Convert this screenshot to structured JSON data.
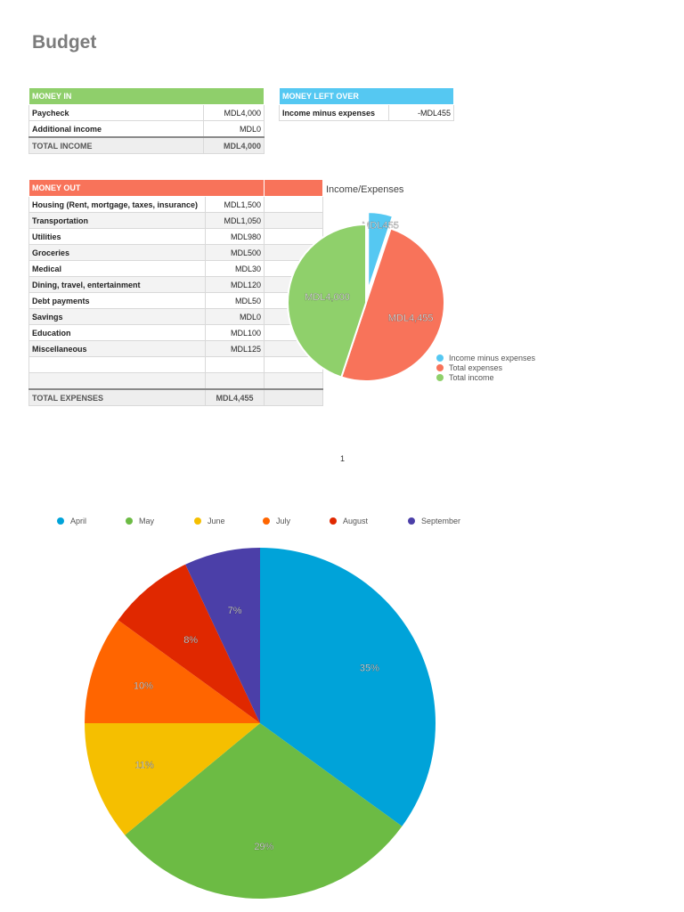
{
  "document": {
    "title": "Budget",
    "page_number": "1"
  },
  "money_in": {
    "header": "MONEY IN",
    "rows": [
      {
        "label": "Paycheck",
        "value": "MDL4,000"
      },
      {
        "label": "Additional income",
        "value": "MDL0"
      }
    ],
    "total_label": "TOTAL INCOME",
    "total_value": "MDL4,000"
  },
  "money_left": {
    "header": "MONEY LEFT OVER",
    "label": "Income minus expenses",
    "value": "-MDL455"
  },
  "money_out": {
    "header": "MONEY OUT",
    "rows": [
      {
        "label": "Housing (Rent, mortgage, taxes, insurance)",
        "value": "MDL1,500"
      },
      {
        "label": "Transportation",
        "value": "MDL1,050"
      },
      {
        "label": "Utilities",
        "value": "MDL980"
      },
      {
        "label": "Groceries",
        "value": "MDL500"
      },
      {
        "label": "Medical",
        "value": "MDL30"
      },
      {
        "label": "Dining, travel, entertainment",
        "value": "MDL120"
      },
      {
        "label": "Debt payments",
        "value": "MDL50"
      },
      {
        "label": "Savings",
        "value": "MDL0"
      },
      {
        "label": "Education",
        "value": "MDL100"
      },
      {
        "label": "Miscellaneous",
        "value": "MDL125"
      },
      {
        "label": "",
        "value": ""
      },
      {
        "label": "",
        "value": ""
      }
    ],
    "total_label": "TOTAL EXPENSES",
    "total_value": "MDL4,455"
  },
  "colors": {
    "money_in": "#8fcf6b",
    "money_left": "#55c8f2",
    "money_out": "#f8735a"
  },
  "chart_data": [
    {
      "type": "pie",
      "title": "Income/Expenses",
      "categories": [
        "Income minus expenses",
        "Total expenses",
        "Total income"
      ],
      "values": [
        455,
        4455,
        4000
      ],
      "labels": [
        "-MDL455",
        "MDL4,455",
        "MDL4,000"
      ],
      "colors": [
        "#55c8f2",
        "#f8735a",
        "#8fd06b"
      ],
      "exploded": [
        true,
        false,
        false
      ],
      "legend": "right"
    },
    {
      "type": "pie",
      "title": "",
      "categories": [
        "April",
        "May",
        "June",
        "July",
        "August",
        "September"
      ],
      "values": [
        35,
        29,
        11,
        10,
        8,
        7
      ],
      "labels": [
        "35%",
        "29%",
        "11%",
        "10%",
        "8%",
        "7%"
      ],
      "colors": [
        "#00a3d9",
        "#6cbb44",
        "#f5bf00",
        "#ff6500",
        "#e02800",
        "#4b3fa8"
      ],
      "legend": "top"
    }
  ]
}
